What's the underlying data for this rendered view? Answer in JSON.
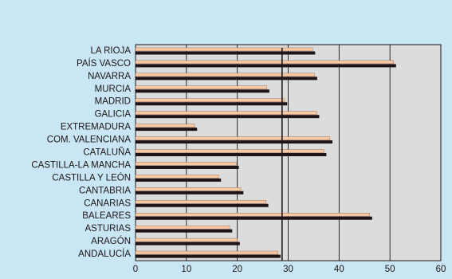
{
  "chart_data": {
    "type": "bar",
    "orientation": "horizontal",
    "categories": [
      "LA RIOJA",
      "PAÍS VASCO",
      "NAVARRA",
      "MURCIA",
      "MADRID",
      "GALICIA",
      "EXTREMADURA",
      "COM. VALENCIANA",
      "CATALUÑA",
      "CASTILLA-LA MANCHA",
      "CASTILLA Y LEÓN",
      "CANTABRIA",
      "CANARIAS",
      "BALEARES",
      "ASTURIAS",
      "ARAGÓN",
      "ANDALUCÍA"
    ],
    "series": [
      {
        "values": [
          34.8,
          50.7,
          35.2,
          25.8,
          29.3,
          35.6,
          11.6,
          38.2,
          37.0,
          19.8,
          16.3,
          20.7,
          25.6,
          46.0,
          18.5,
          20.0,
          28.0
        ],
        "color": "#f7c9a4"
      },
      {
        "values": [
          35.3,
          51.2,
          35.7,
          26.3,
          29.8,
          36.1,
          12.1,
          38.7,
          37.5,
          20.3,
          16.8,
          21.2,
          26.1,
          46.5,
          19.0,
          20.5,
          28.5
        ],
        "color": "#1e1416"
      }
    ],
    "reference_line": {
      "value": 28.8
    },
    "x_ticks": [
      "0",
      "10",
      "20",
      "30",
      "40",
      "50",
      "60"
    ],
    "xlim": [
      0,
      60
    ],
    "grid": true,
    "title": "",
    "xlabel": "",
    "ylabel": ""
  },
  "colors": {
    "background": "#c9e6f4",
    "plot_background": "#dcdcdc",
    "grid": "#000000",
    "text": "#1e1416"
  }
}
